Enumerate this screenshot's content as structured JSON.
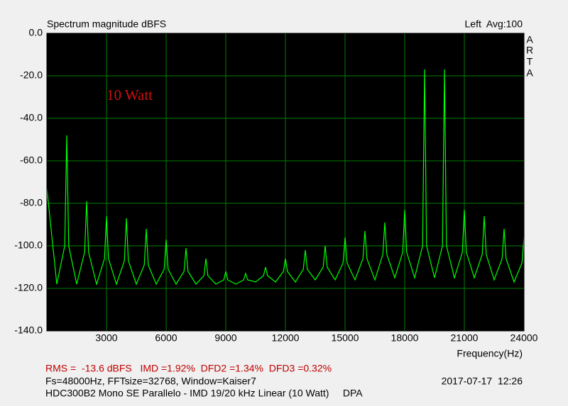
{
  "chart_data": {
    "type": "line",
    "title": "Spectrum magnitude dBFS",
    "channel_info": "Left  Avg:100",
    "brand_letters": [
      "A",
      "R",
      "T",
      "A"
    ],
    "annotation": "10 Watt",
    "x_label": "Frequency(Hz)",
    "xlim": [
      0,
      24000
    ],
    "ylim": [
      -140,
      0
    ],
    "xticks": [
      3000,
      6000,
      9000,
      12000,
      15000,
      18000,
      21000,
      24000
    ],
    "yticks": [
      {
        "value": 0,
        "label": "0.0"
      },
      {
        "value": -20,
        "label": "-20.0"
      },
      {
        "value": -40,
        "label": "-40.0"
      },
      {
        "value": -60,
        "label": "-60.0"
      },
      {
        "value": -80,
        "label": "-80.0"
      },
      {
        "value": -100,
        "label": "-100.0"
      },
      {
        "value": -120,
        "label": "-120.0"
      },
      {
        "value": -140,
        "label": "-140.0"
      }
    ],
    "grid": true,
    "x": [
      0,
      500,
      900,
      1000,
      1100,
      1500,
      1900,
      2000,
      2100,
      2500,
      2900,
      3000,
      3100,
      3500,
      3900,
      4000,
      4100,
      4500,
      4900,
      5000,
      5100,
      5500,
      5900,
      6000,
      6100,
      6500,
      6900,
      7000,
      7100,
      7500,
      7900,
      8000,
      8100,
      8500,
      8900,
      9000,
      9100,
      9500,
      9900,
      10000,
      10100,
      10500,
      10900,
      11000,
      11100,
      11500,
      11900,
      12000,
      12100,
      12500,
      12900,
      13000,
      13100,
      13500,
      13900,
      14000,
      14100,
      14500,
      14900,
      15000,
      15100,
      15500,
      15900,
      16000,
      16100,
      16500,
      16900,
      17000,
      17100,
      17500,
      17900,
      18000,
      18100,
      18500,
      18900,
      19000,
      19100,
      19500,
      19900,
      20000,
      20100,
      20500,
      20900,
      21000,
      21100,
      21500,
      21900,
      22000,
      22100,
      22500,
      22900,
      23000,
      23100,
      23500,
      23900,
      24000
    ],
    "series": [
      {
        "name": "Left",
        "color": "#00ff00",
        "values": [
          -73,
          -118,
          -100,
          -48,
          -100,
          -118,
          -103,
          -79,
          -103,
          -118,
          -106,
          -86,
          -106,
          -118,
          -107,
          -87,
          -107,
          -118,
          -109,
          -92,
          -109,
          -118,
          -111,
          -97,
          -111,
          -118,
          -112,
          -101,
          -112,
          -118,
          -114,
          -106,
          -114,
          -118,
          -116,
          -112,
          -116,
          -118,
          -116,
          -113,
          -116,
          -117,
          -114,
          -110,
          -114,
          -117,
          -112,
          -106,
          -112,
          -117,
          -111,
          -102,
          -111,
          -116,
          -110,
          -100,
          -110,
          -116,
          -108,
          -96,
          -108,
          -116,
          -106,
          -93,
          -106,
          -116,
          -104,
          -89,
          -104,
          -115,
          -103,
          -83,
          -103,
          -115,
          -100,
          -17,
          -100,
          -115,
          -100,
          -17,
          -100,
          -115,
          -103,
          -83,
          -103,
          -115,
          -104,
          -86,
          -104,
          -116,
          -106,
          -92,
          -106,
          -117,
          -108,
          -96
        ]
      }
    ],
    "info": {
      "metrics": "RMS =  -13.6 dBFS   IMD =1.92%  DFD2 =1.34%  DFD3 =0.32%",
      "settings": "Fs=48000Hz, FFTsize=32768, Window=Kaiser7",
      "timestamp": "2017-07-17  12:26",
      "description": "HDC300B2 Mono SE Parallelo - IMD 19/20 kHz Linear (10 Watt)     DPA"
    }
  }
}
